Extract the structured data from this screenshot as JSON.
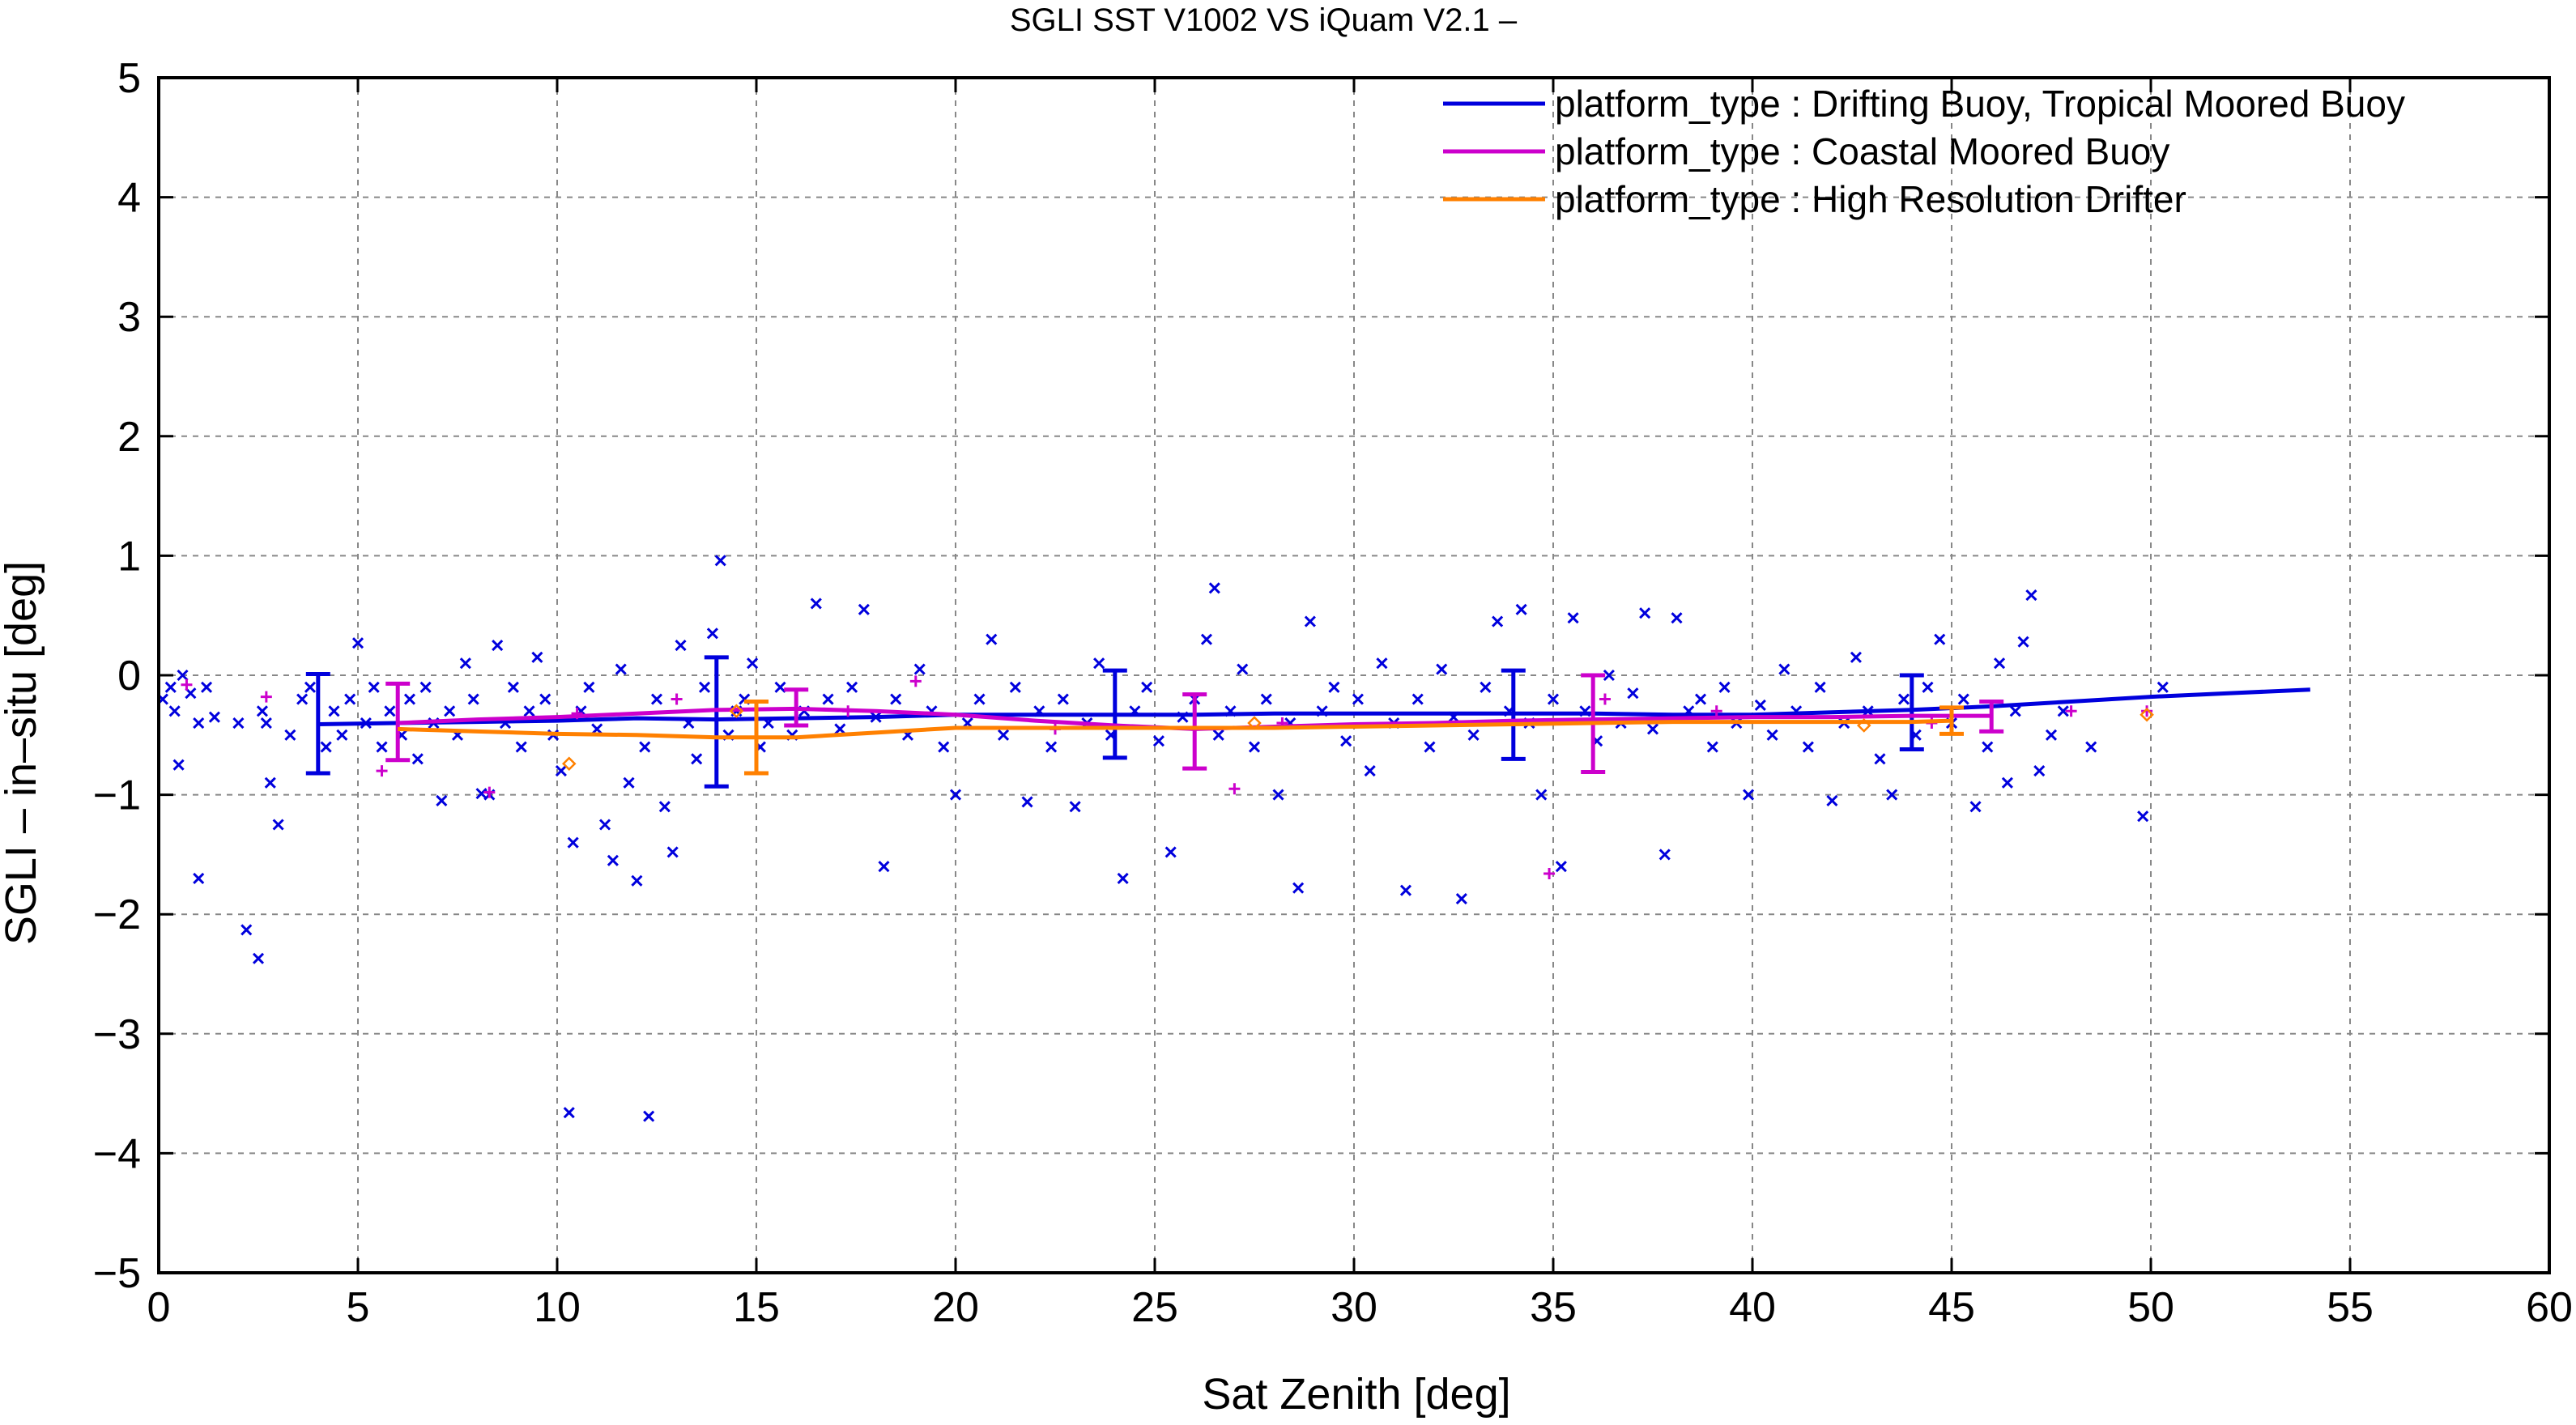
{
  "chart_data": {
    "type": "scatter",
    "title": "SGLI SST V1002 VS iQuam V2.1  –",
    "xlabel": "Sat Zenith [deg]",
    "ylabel": "SGLI – in–situ [deg]",
    "xlim": [
      0,
      60
    ],
    "ylim": [
      -5,
      5
    ],
    "x_ticks": [
      0,
      5,
      10,
      15,
      20,
      25,
      30,
      35,
      40,
      45,
      50,
      55,
      60
    ],
    "y_ticks": [
      -5,
      -4,
      -3,
      -2,
      -1,
      0,
      1,
      2,
      3,
      4,
      5
    ],
    "x_tick_labels": [
      "0",
      "5",
      "10",
      "15",
      "20",
      "25",
      "30",
      "35",
      "40",
      "45",
      "50",
      "55",
      "60"
    ],
    "y_tick_labels": [
      "−5",
      "−4",
      "−3",
      "−2",
      "−1",
      "0",
      "1",
      "2",
      "3",
      "4",
      "5"
    ],
    "grid": true,
    "legend_position": "top-right",
    "series": [
      {
        "name": "platform_type : Drifting Buoy, Tropical Moored Buoy",
        "color": "#0000dd",
        "line": {
          "x": [
            4,
            6,
            8,
            10,
            12,
            14,
            16,
            18,
            20,
            22,
            24,
            26,
            28,
            30,
            32,
            34,
            36,
            38,
            40,
            42,
            44,
            46,
            48,
            50,
            52,
            54
          ],
          "y": [
            -0.41,
            -0.4,
            -0.39,
            -0.38,
            -0.36,
            -0.37,
            -0.36,
            -0.35,
            -0.33,
            -0.33,
            -0.33,
            -0.33,
            -0.32,
            -0.32,
            -0.32,
            -0.32,
            -0.32,
            -0.33,
            -0.33,
            -0.31,
            -0.29,
            -0.26,
            -0.22,
            -0.18,
            -0.15,
            -0.12
          ]
        },
        "error_bars": [
          {
            "x": 4,
            "low": -0.82,
            "high": 0.01
          },
          {
            "x": 14,
            "low": -0.93,
            "high": 0.15
          },
          {
            "x": 24,
            "low": -0.69,
            "high": 0.04
          },
          {
            "x": 34,
            "low": -0.7,
            "high": 0.04
          },
          {
            "x": 44,
            "low": -0.62,
            "high": 0.0
          }
        ],
        "points": [
          [
            0.1,
            -0.2
          ],
          [
            0.3,
            -0.1
          ],
          [
            0.4,
            -0.3
          ],
          [
            0.6,
            0.0
          ],
          [
            0.8,
            -0.15
          ],
          [
            1.0,
            -0.4
          ],
          [
            1.2,
            -0.1
          ],
          [
            1.4,
            -0.35
          ],
          [
            0.5,
            -0.75
          ],
          [
            1.0,
            -1.7
          ],
          [
            2.0,
            -0.4
          ],
          [
            2.2,
            -2.13
          ],
          [
            2.5,
            -2.37
          ],
          [
            2.6,
            -0.3
          ],
          [
            2.7,
            -0.4
          ],
          [
            2.8,
            -0.9
          ],
          [
            3.0,
            -1.25
          ],
          [
            3.3,
            -0.5
          ],
          [
            3.6,
            -0.2
          ],
          [
            3.8,
            -0.1
          ],
          [
            4.2,
            -0.6
          ],
          [
            4.4,
            -0.3
          ],
          [
            4.6,
            -0.5
          ],
          [
            4.8,
            -0.2
          ],
          [
            5.0,
            0.27
          ],
          [
            5.2,
            -0.4
          ],
          [
            5.4,
            -0.1
          ],
          [
            5.6,
            -0.6
          ],
          [
            5.8,
            -0.3
          ],
          [
            6.1,
            -0.5
          ],
          [
            6.3,
            -0.2
          ],
          [
            6.5,
            -0.7
          ],
          [
            6.7,
            -0.1
          ],
          [
            6.9,
            -0.4
          ],
          [
            7.1,
            -1.05
          ],
          [
            7.3,
            -0.3
          ],
          [
            7.5,
            -0.5
          ],
          [
            7.7,
            0.1
          ],
          [
            7.9,
            -0.2
          ],
          [
            8.1,
            -0.99
          ],
          [
            8.3,
            -1.0
          ],
          [
            8.5,
            0.25
          ],
          [
            8.7,
            -0.4
          ],
          [
            8.9,
            -0.1
          ],
          [
            9.1,
            -0.6
          ],
          [
            9.3,
            -0.3
          ],
          [
            9.5,
            0.15
          ],
          [
            9.7,
            -0.2
          ],
          [
            9.9,
            -0.5
          ],
          [
            10.1,
            -0.8
          ],
          [
            10.3,
            -3.66
          ],
          [
            10.4,
            -1.4
          ],
          [
            10.6,
            -0.3
          ],
          [
            10.8,
            -0.1
          ],
          [
            11.0,
            -0.45
          ],
          [
            11.2,
            -1.25
          ],
          [
            11.4,
            -1.55
          ],
          [
            11.6,
            0.05
          ],
          [
            11.8,
            -0.9
          ],
          [
            12.0,
            -1.72
          ],
          [
            12.2,
            -0.6
          ],
          [
            12.3,
            -3.69
          ],
          [
            12.5,
            -0.2
          ],
          [
            12.7,
            -1.1
          ],
          [
            12.9,
            -1.48
          ],
          [
            13.1,
            0.25
          ],
          [
            13.3,
            -0.4
          ],
          [
            13.5,
            -0.7
          ],
          [
            13.7,
            -0.1
          ],
          [
            13.9,
            0.35
          ],
          [
            14.1,
            0.96
          ],
          [
            14.3,
            -0.5
          ],
          [
            14.5,
            -0.3
          ],
          [
            14.7,
            -0.2
          ],
          [
            14.9,
            0.1
          ],
          [
            15.1,
            -0.6
          ],
          [
            15.3,
            -0.4
          ],
          [
            15.6,
            -0.1
          ],
          [
            15.9,
            -0.5
          ],
          [
            16.2,
            -0.3
          ],
          [
            16.5,
            0.6
          ],
          [
            16.8,
            -0.2
          ],
          [
            17.1,
            -0.45
          ],
          [
            17.4,
            -0.1
          ],
          [
            17.7,
            0.55
          ],
          [
            18.0,
            -0.35
          ],
          [
            18.2,
            -1.6
          ],
          [
            18.5,
            -0.2
          ],
          [
            18.8,
            -0.5
          ],
          [
            19.1,
            0.05
          ],
          [
            19.4,
            -0.3
          ],
          [
            19.7,
            -0.6
          ],
          [
            20.0,
            -1.0
          ],
          [
            20.3,
            -0.4
          ],
          [
            20.6,
            -0.2
          ],
          [
            20.9,
            0.3
          ],
          [
            21.2,
            -0.5
          ],
          [
            21.5,
            -0.1
          ],
          [
            21.8,
            -1.06
          ],
          [
            22.1,
            -0.3
          ],
          [
            22.4,
            -0.6
          ],
          [
            22.7,
            -0.2
          ],
          [
            23.0,
            -1.1
          ],
          [
            23.3,
            -0.4
          ],
          [
            23.6,
            0.1
          ],
          [
            23.9,
            -0.5
          ],
          [
            24.2,
            -1.7
          ],
          [
            24.5,
            -0.3
          ],
          [
            24.8,
            -0.1
          ],
          [
            25.1,
            -0.55
          ],
          [
            25.4,
            -1.48
          ],
          [
            25.7,
            -0.35
          ],
          [
            26.0,
            -0.2
          ],
          [
            26.3,
            0.3
          ],
          [
            26.5,
            0.73
          ],
          [
            26.6,
            -0.5
          ],
          [
            26.9,
            -0.3
          ],
          [
            27.2,
            0.05
          ],
          [
            27.5,
            -0.6
          ],
          [
            27.8,
            -0.2
          ],
          [
            28.1,
            -1.0
          ],
          [
            28.4,
            -0.4
          ],
          [
            28.6,
            -1.78
          ],
          [
            28.9,
            0.45
          ],
          [
            29.2,
            -0.3
          ],
          [
            29.5,
            -0.1
          ],
          [
            29.8,
            -0.55
          ],
          [
            30.1,
            -0.2
          ],
          [
            30.4,
            -0.8
          ],
          [
            30.7,
            0.1
          ],
          [
            31.0,
            -0.4
          ],
          [
            31.3,
            -1.8
          ],
          [
            31.6,
            -0.2
          ],
          [
            31.9,
            -0.6
          ],
          [
            32.2,
            0.05
          ],
          [
            32.5,
            -0.35
          ],
          [
            32.7,
            -1.87
          ],
          [
            33.0,
            -0.5
          ],
          [
            33.3,
            -0.1
          ],
          [
            33.6,
            0.45
          ],
          [
            33.9,
            -0.3
          ],
          [
            34.2,
            0.55
          ],
          [
            34.4,
            -0.4
          ],
          [
            34.7,
            -1.0
          ],
          [
            35.0,
            -0.2
          ],
          [
            35.2,
            -1.6
          ],
          [
            35.5,
            0.48
          ],
          [
            35.8,
            -0.3
          ],
          [
            36.1,
            -0.55
          ],
          [
            36.4,
            0.0
          ],
          [
            36.7,
            -0.4
          ],
          [
            37.0,
            -0.15
          ],
          [
            37.3,
            0.52
          ],
          [
            37.5,
            -0.45
          ],
          [
            37.8,
            -1.5
          ],
          [
            38.1,
            0.48
          ],
          [
            38.4,
            -0.3
          ],
          [
            38.7,
            -0.2
          ],
          [
            39.0,
            -0.6
          ],
          [
            39.3,
            -0.1
          ],
          [
            39.6,
            -0.4
          ],
          [
            39.9,
            -1.0
          ],
          [
            40.2,
            -0.25
          ],
          [
            40.5,
            -0.5
          ],
          [
            40.8,
            0.05
          ],
          [
            41.1,
            -0.3
          ],
          [
            41.4,
            -0.6
          ],
          [
            41.7,
            -0.1
          ],
          [
            42.0,
            -1.05
          ],
          [
            42.3,
            -0.4
          ],
          [
            42.6,
            0.15
          ],
          [
            42.9,
            -0.3
          ],
          [
            43.2,
            -0.7
          ],
          [
            43.5,
            -1.0
          ],
          [
            43.8,
            -0.2
          ],
          [
            44.1,
            -0.5
          ],
          [
            44.4,
            -0.1
          ],
          [
            44.7,
            0.3
          ],
          [
            45.0,
            -0.4
          ],
          [
            45.3,
            -0.2
          ],
          [
            45.6,
            -1.1
          ],
          [
            45.9,
            -0.6
          ],
          [
            46.2,
            0.1
          ],
          [
            46.4,
            -0.9
          ],
          [
            46.6,
            -0.3
          ],
          [
            46.8,
            0.28
          ],
          [
            47.0,
            0.67
          ],
          [
            47.2,
            -0.8
          ],
          [
            47.5,
            -0.5
          ],
          [
            47.8,
            -0.3
          ],
          [
            48.5,
            -0.6
          ],
          [
            49.8,
            -1.18
          ],
          [
            50.3,
            -0.1
          ]
        ]
      },
      {
        "name": "platform_type : Coastal Moored Buoy",
        "color": "#cc00cc",
        "line": {
          "x": [
            6,
            8,
            10,
            12,
            14,
            16,
            18,
            20,
            22,
            24,
            26,
            28,
            30,
            32,
            34,
            36,
            38,
            40,
            42,
            44,
            46
          ],
          "y": [
            -0.4,
            -0.37,
            -0.35,
            -0.32,
            -0.29,
            -0.28,
            -0.3,
            -0.33,
            -0.38,
            -0.42,
            -0.45,
            -0.43,
            -0.41,
            -0.4,
            -0.38,
            -0.37,
            -0.36,
            -0.35,
            -0.35,
            -0.34,
            -0.34
          ]
        },
        "error_bars": [
          {
            "x": 6,
            "low": -0.71,
            "high": -0.07
          },
          {
            "x": 16,
            "low": -0.42,
            "high": -0.12
          },
          {
            "x": 26,
            "low": -0.78,
            "high": -0.16
          },
          {
            "x": 36,
            "low": -0.81,
            "high": 0.0
          },
          {
            "x": 46,
            "low": -0.47,
            "high": -0.22
          }
        ],
        "points": [
          [
            0.7,
            -0.08
          ],
          [
            2.7,
            -0.18
          ],
          [
            5.6,
            -0.8
          ],
          [
            8.3,
            -0.98
          ],
          [
            10.5,
            -0.32
          ],
          [
            13.0,
            -0.2
          ],
          [
            17.3,
            -0.3
          ],
          [
            19.0,
            -0.05
          ],
          [
            22.5,
            -0.45
          ],
          [
            27.0,
            -0.95
          ],
          [
            28.2,
            -0.4
          ],
          [
            34.9,
            -1.66
          ],
          [
            36.3,
            -0.2
          ],
          [
            39.1,
            -0.3
          ],
          [
            44.5,
            -0.4
          ],
          [
            48.0,
            -0.3
          ],
          [
            49.9,
            -0.3
          ]
        ]
      },
      {
        "name": "platform_type : High Resolution Drifter",
        "color": "#ff8000",
        "line": {
          "x": [
            6,
            8,
            10,
            12,
            14,
            15,
            16,
            18,
            20,
            22,
            24,
            26,
            28,
            30,
            32,
            34,
            36,
            38,
            40,
            42,
            44,
            45
          ],
          "y": [
            -0.45,
            -0.47,
            -0.49,
            -0.5,
            -0.52,
            -0.52,
            -0.52,
            -0.48,
            -0.44,
            -0.44,
            -0.44,
            -0.44,
            -0.44,
            -0.43,
            -0.42,
            -0.41,
            -0.4,
            -0.39,
            -0.39,
            -0.39,
            -0.39,
            -0.38
          ]
        },
        "error_bars": [
          {
            "x": 15,
            "low": -0.82,
            "high": -0.22
          },
          {
            "x": 45,
            "low": -0.49,
            "high": -0.27
          }
        ],
        "points": [
          [
            10.3,
            -0.74
          ],
          [
            14.5,
            -0.3
          ],
          [
            27.5,
            -0.4
          ],
          [
            42.8,
            -0.42
          ],
          [
            49.9,
            -0.33
          ]
        ]
      }
    ]
  }
}
